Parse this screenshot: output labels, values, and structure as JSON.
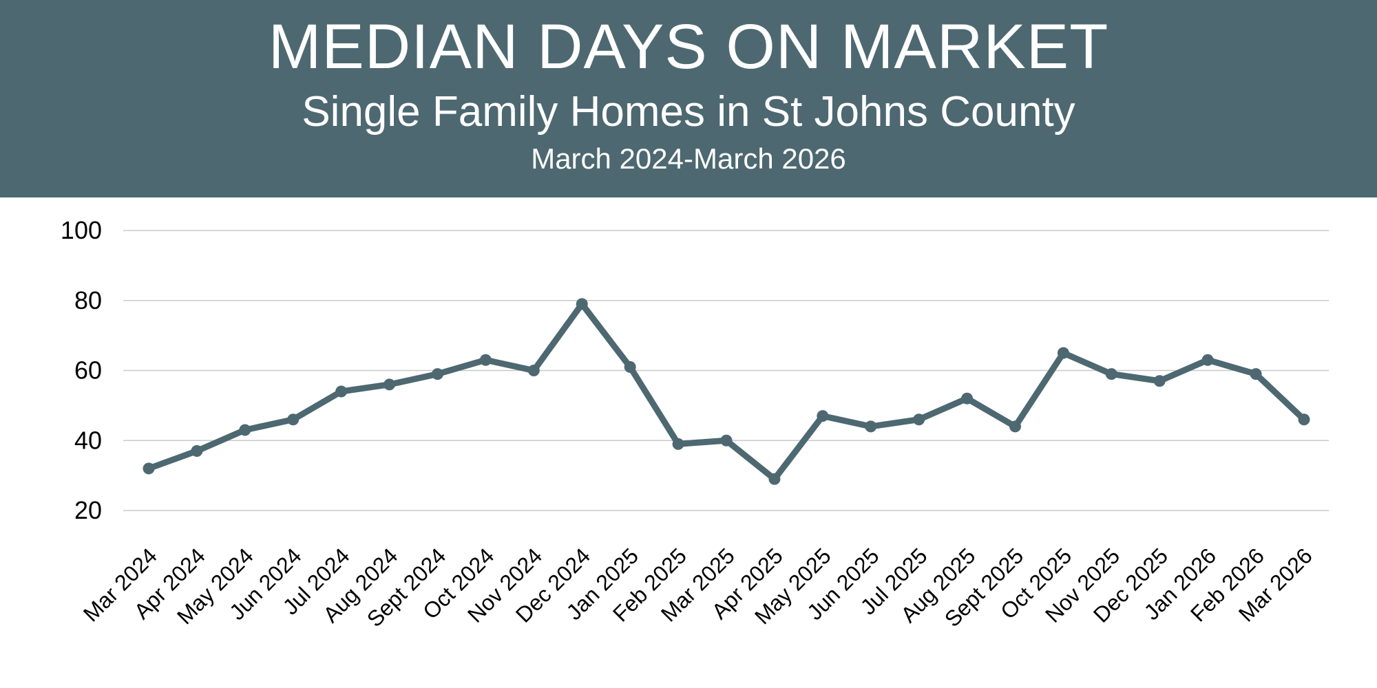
{
  "header": {
    "title": "MEDIAN DAYS ON MARKET",
    "subtitle": "Single Family Homes in St Johns County",
    "date_range": "March 2024-March 2026",
    "background_color": "#4d6870"
  },
  "chart_data": {
    "type": "line",
    "title": "MEDIAN DAYS ON MARKET",
    "xlabel": "",
    "ylabel": "",
    "ylim": [
      20,
      100
    ],
    "yticks": [
      20,
      40,
      60,
      80,
      100
    ],
    "grid": true,
    "legend": "none",
    "line_color": "#4d6870",
    "categories": [
      "Mar 2024",
      "Apr 2024",
      "May 2024",
      "Jun 2024",
      "Jul 2024",
      "Aug 2024",
      "Sept 2024",
      "Oct 2024",
      "Nov 2024",
      "Dec 2024",
      "Jan 2025",
      "Feb 2025",
      "Mar 2025",
      "Apr 2025",
      "May 2025",
      "Jun 2025",
      "Jul 2025",
      "Aug 2025",
      "Sept 2025",
      "Oct 2025",
      "Nov 2025",
      "Dec 2025",
      "Jan 2026",
      "Feb 2026",
      "Mar 2026"
    ],
    "values": [
      32,
      37,
      43,
      46,
      54,
      56,
      59,
      63,
      60,
      79,
      61,
      39,
      40,
      29,
      47,
      44,
      46,
      52,
      44,
      65,
      59,
      57,
      63,
      59,
      46
    ]
  }
}
